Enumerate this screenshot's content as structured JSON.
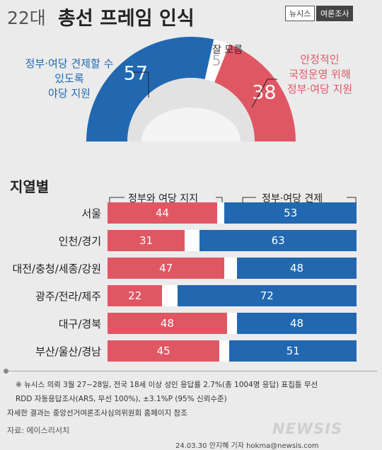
{
  "header": {
    "title_prefix": "22대",
    "title_main": "총선 프레임 인식",
    "badge_left": "뉴시스",
    "badge_right": "여론조사"
  },
  "overall": {
    "check_label": [
      "정부·여당 견제할 수",
      "있도록",
      "야당 지원"
    ],
    "support_label": [
      "안정적인",
      "국정운영 위해",
      "정부·여당 지원"
    ],
    "unknown_label": "잘 모름",
    "colors": {
      "check": "#2168b1",
      "support": "#e05764",
      "unknown": "#ffffff"
    }
  },
  "region": {
    "title": "지열별",
    "legend_support": "정부와 여당 지지",
    "legend_check": "정부·여당 견제"
  },
  "chart_data": [
    {
      "type": "pie",
      "categories": [
        "정부·여당 견제할 수 있도록 야당 지원",
        "잘 모름",
        "안정적인 국정운영 위해 정부·여당 지원"
      ],
      "values": [
        57,
        5,
        38
      ]
    },
    {
      "type": "bar",
      "categories": [
        "서울",
        "인천/경기",
        "대전/충청/세종/강원",
        "광주/전라/제주",
        "대구/경북",
        "부산/울산/경남"
      ],
      "series": [
        {
          "name": "정부와 여당 지지",
          "values": [
            44,
            31,
            47,
            22,
            48,
            45
          ]
        },
        {
          "name": "정부·여당 견제",
          "values": [
            53,
            63,
            48,
            72,
            48,
            51
          ]
        }
      ]
    }
  ],
  "footer": {
    "note1": "※ 뉴시스 의뢰 3월 27~28일, 전국 18세 이상 성인 응답률 2.7%(총 1004명 응답) 표집틀 무선",
    "note2": "RDD 자동응답조사(ARS, 무선 100%), ±3.1%P (95% 신뢰수준)",
    "note3": "자세한 결과는 중앙선거여론조사심의위원회 홈페이지 참조",
    "source": "자료: 에이스리서치",
    "logo": "NEWSIS",
    "credit": "24.03.30 안지혜 기자 hokma@newsis.com"
  }
}
